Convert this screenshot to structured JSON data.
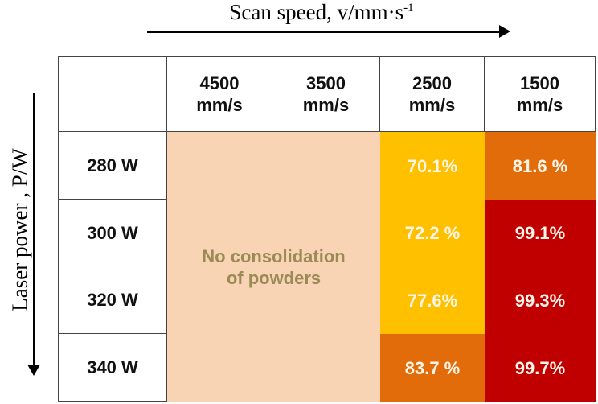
{
  "chart_data": {
    "type": "table",
    "title": "Scan speed, v/mm·s",
    "title_superscript": "-1",
    "ylabel": "Laser power , P/W",
    "columns": [
      "4500\nmm/s",
      "3500\nmm/s",
      "2500\nmm/s",
      "1500\nmm/s"
    ],
    "rows": [
      "280 W",
      "300 W",
      "320 W",
      "340 W"
    ],
    "no_consolidation_label": "No consolidation\nof powders",
    "cells_2500": [
      "70.1%",
      "72.2 %",
      "77.6%",
      "83.7 %"
    ],
    "cells_1500": [
      "81.6 %",
      "99.1%",
      "99.3%",
      "99.7%"
    ],
    "values": {
      "2500": [
        70.1,
        72.2,
        77.6,
        83.7
      ],
      "1500": [
        81.6,
        99.1,
        99.3,
        99.7
      ]
    },
    "colors": {
      "no_consolidation": "#f9d4b4",
      "low": "#ffc000",
      "mid": "#e36c0a",
      "high": "#c00000"
    }
  }
}
